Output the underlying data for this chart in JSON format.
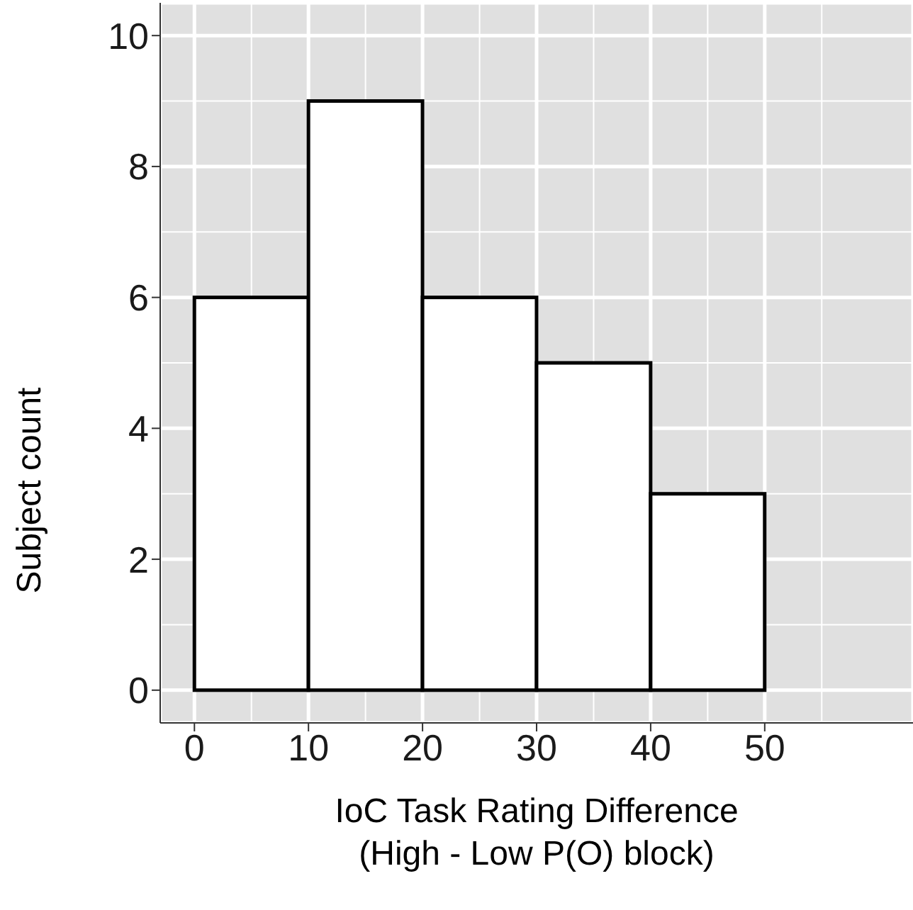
{
  "chart_data": {
    "type": "histogram",
    "xlabel": "IoC Task Rating Difference\n(High - Low P(O) block)",
    "ylabel": "Subject count",
    "bins": [
      0,
      10,
      20,
      30,
      40,
      50,
      60
    ],
    "values": [
      6,
      9,
      6,
      5,
      3,
      0
    ],
    "color": "#ffffff",
    "xlim": [
      -3,
      63
    ],
    "xticks": [
      0,
      10,
      20,
      30,
      40,
      50
    ],
    "ylim": [
      -0.5,
      10.5
    ],
    "yticks": [
      0,
      2,
      4,
      6,
      8,
      10
    ],
    "grid": true
  }
}
